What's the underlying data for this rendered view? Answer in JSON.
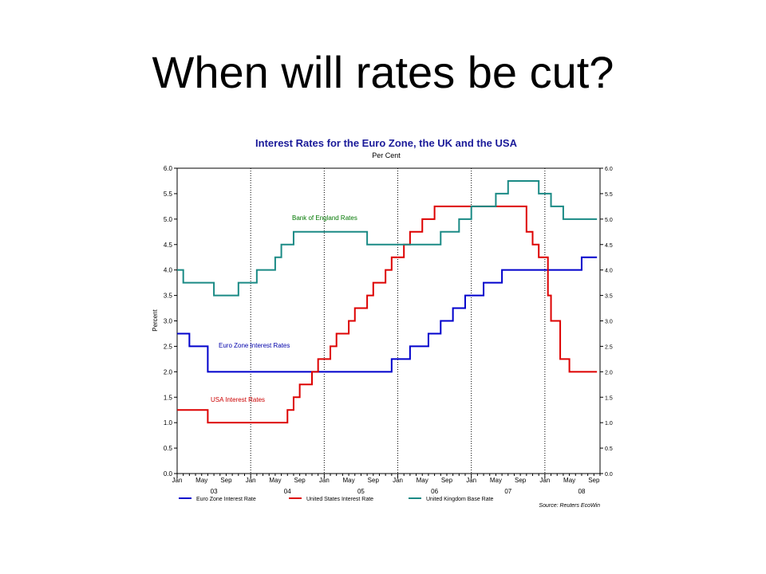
{
  "slide": {
    "title": "When will rates be cut?"
  },
  "chart_data": {
    "type": "line",
    "title": "Interest Rates for the Euro Zone, the UK and the USA",
    "subtitle": "Per Cent",
    "ylabel": "Percent",
    "ylim": [
      0,
      6
    ],
    "yticks": [
      "0.0",
      "0.5",
      "1.0",
      "1.5",
      "2.0",
      "2.5",
      "3.0",
      "3.5",
      "4.0",
      "4.5",
      "5.0",
      "5.5",
      "6.0"
    ],
    "xlim": [
      0,
      69
    ],
    "xticks": [
      {
        "m": 0,
        "label": "Jan"
      },
      {
        "m": 4,
        "label": "May"
      },
      {
        "m": 8,
        "label": "Sep"
      },
      {
        "m": 12,
        "label": "Jan"
      },
      {
        "m": 16,
        "label": "May"
      },
      {
        "m": 20,
        "label": "Sep"
      },
      {
        "m": 24,
        "label": "Jan"
      },
      {
        "m": 28,
        "label": "May"
      },
      {
        "m": 32,
        "label": "Sep"
      },
      {
        "m": 36,
        "label": "Jan"
      },
      {
        "m": 40,
        "label": "May"
      },
      {
        "m": 44,
        "label": "Sep"
      },
      {
        "m": 48,
        "label": "Jan"
      },
      {
        "m": 52,
        "label": "May"
      },
      {
        "m": 56,
        "label": "Sep"
      },
      {
        "m": 60,
        "label": "Jan"
      },
      {
        "m": 64,
        "label": "May"
      },
      {
        "m": 68,
        "label": "Sep"
      }
    ],
    "years": [
      {
        "m": 6,
        "label": "03"
      },
      {
        "m": 18,
        "label": "04"
      },
      {
        "m": 30,
        "label": "05"
      },
      {
        "m": 42,
        "label": "06"
      },
      {
        "m": 54,
        "label": "07"
      },
      {
        "m": 66,
        "label": "08"
      }
    ],
    "vgrid_months": [
      12,
      24,
      36,
      48,
      60
    ],
    "series": [
      {
        "name": "Euro Zone Interest Rate",
        "color": "#0000cc",
        "steps": [
          [
            0,
            2.75
          ],
          [
            2,
            2.5
          ],
          [
            5,
            2.0
          ],
          [
            35,
            2.25
          ],
          [
            38,
            2.5
          ],
          [
            41,
            2.75
          ],
          [
            43,
            3.0
          ],
          [
            45,
            3.25
          ],
          [
            47,
            3.5
          ],
          [
            50,
            3.75
          ],
          [
            53,
            4.0
          ],
          [
            66,
            4.25
          ],
          [
            68,
            4.25
          ]
        ]
      },
      {
        "name": "United States Interest Rate",
        "color": "#dd0000",
        "steps": [
          [
            0,
            1.25
          ],
          [
            5,
            1.0
          ],
          [
            18,
            1.25
          ],
          [
            19,
            1.5
          ],
          [
            20,
            1.75
          ],
          [
            22,
            2.0
          ],
          [
            23,
            2.25
          ],
          [
            25,
            2.5
          ],
          [
            26,
            2.75
          ],
          [
            28,
            3.0
          ],
          [
            29,
            3.25
          ],
          [
            31,
            3.5
          ],
          [
            32,
            3.75
          ],
          [
            34,
            4.0
          ],
          [
            35,
            4.25
          ],
          [
            37,
            4.5
          ],
          [
            38,
            4.75
          ],
          [
            40,
            5.0
          ],
          [
            42,
            5.25
          ],
          [
            57,
            4.75
          ],
          [
            58,
            4.5
          ],
          [
            59,
            4.25
          ],
          [
            60.5,
            3.5
          ],
          [
            61,
            3.0
          ],
          [
            62.5,
            2.25
          ],
          [
            64,
            2.0
          ],
          [
            68,
            2.0
          ]
        ]
      },
      {
        "name": "United Kingdom Base Rate",
        "color": "#1a8a85",
        "steps": [
          [
            0,
            4.0
          ],
          [
            1,
            3.75
          ],
          [
            6,
            3.5
          ],
          [
            10,
            3.75
          ],
          [
            13,
            4.0
          ],
          [
            16,
            4.25
          ],
          [
            17,
            4.5
          ],
          [
            19,
            4.75
          ],
          [
            31,
            4.5
          ],
          [
            43,
            4.75
          ],
          [
            46,
            5.0
          ],
          [
            48,
            5.25
          ],
          [
            52,
            5.5
          ],
          [
            54,
            5.75
          ],
          [
            59,
            5.5
          ],
          [
            61,
            5.25
          ],
          [
            63,
            5.0
          ],
          [
            68,
            5.0
          ]
        ]
      }
    ],
    "annotations": [
      "Bank of England Rates",
      "Euro Zone Interest Rates",
      "USA Interest Rates"
    ],
    "source": "Source: Reuters EcoWin",
    "grid": true,
    "legend_position": "bottom"
  }
}
